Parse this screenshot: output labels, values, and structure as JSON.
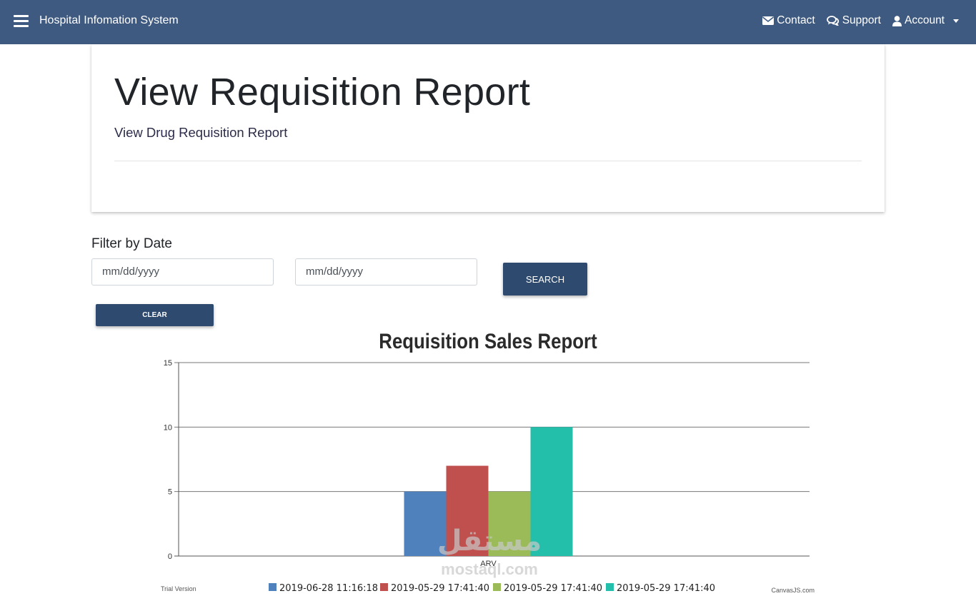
{
  "navbar": {
    "brand": "Hospital Infomation System",
    "contact": "Contact",
    "support": "Support",
    "account": "Account",
    "bg_color": "#3f5a80"
  },
  "header": {
    "title": "View Requisition Report",
    "subtitle": "View Drug Requisition Report"
  },
  "filter": {
    "label": "Filter by Date",
    "start_placeholder": "mm/dd/yyyy",
    "end_placeholder": "mm/dd/yyyy",
    "search_label": "SEARCH",
    "clear_label": "CLEAR",
    "button_color": "#2e4a6e"
  },
  "chart_footer": {
    "trial": "Trial Version",
    "credit": "CanvasJS.com"
  },
  "watermark": {
    "arabic": "مستقل",
    "latin": "mostaql.com"
  },
  "chart_data": {
    "type": "bar",
    "title": "Requisition Sales Report",
    "categories": [
      "ARV"
    ],
    "series": [
      {
        "name": "2019-06-28 11:16:18",
        "values": [
          5
        ],
        "color": "#4f81bc"
      },
      {
        "name": "2019-05-29 17:41:40",
        "values": [
          7
        ],
        "color": "#c0504e"
      },
      {
        "name": "2019-05-29 17:41:40",
        "values": [
          5
        ],
        "color": "#9bbb58"
      },
      {
        "name": "2019-05-29 17:41:40",
        "values": [
          10
        ],
        "color": "#23bfaa"
      }
    ],
    "ylim": [
      0,
      15
    ],
    "yticks": [
      0,
      5,
      10,
      15
    ],
    "grid": true,
    "legend_position": "bottom"
  }
}
